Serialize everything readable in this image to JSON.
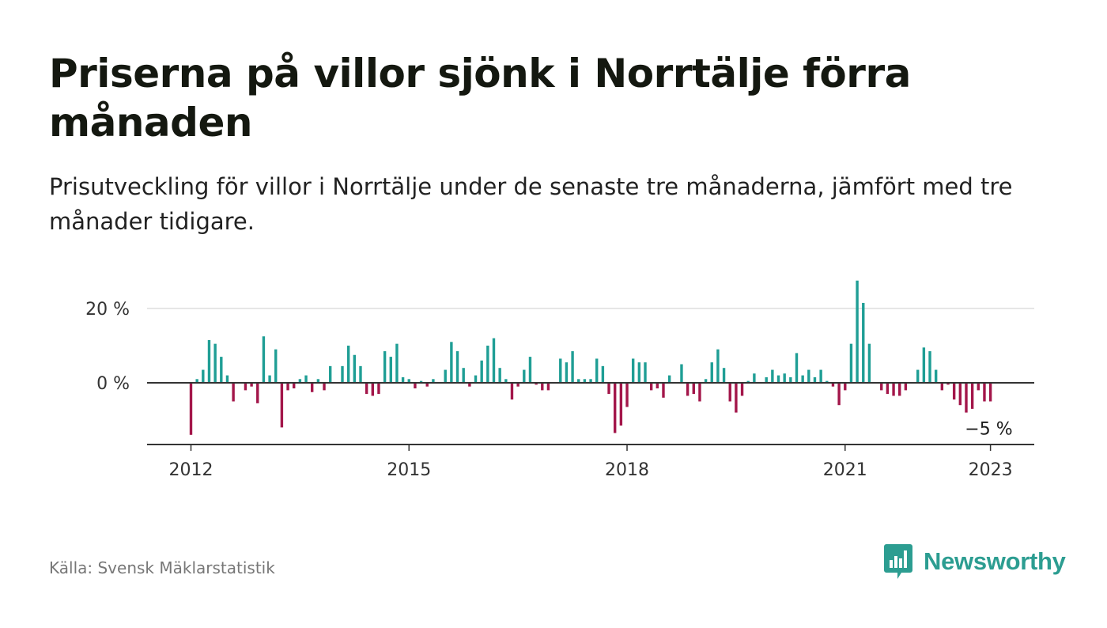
{
  "header": {
    "title": "Priserna på villor sjönk i Norrtälje förra månaden",
    "subtitle": "Prisutveckling för villor i Norrtälje under de senaste tre månaderna, jämfört med tre månader tidigare."
  },
  "footer": {
    "source": "Källa: Svensk Mäklarstatistik",
    "brand": "Newsworthy",
    "brand_icon": "bar-chart-speech-bubble-icon"
  },
  "colors": {
    "positive": "#1f9e95",
    "negative": "#a3164a",
    "gridline": "#dddddd",
    "axis": "#333333",
    "brand": "#2c9d91"
  },
  "chart_data": {
    "type": "bar",
    "ylabel": "",
    "xlabel": "",
    "ylim": [
      -17,
      28
    ],
    "yticks": [
      {
        "value": 0,
        "label": "0 %"
      },
      {
        "value": 20,
        "label": "20 %"
      }
    ],
    "xticks": [
      {
        "value": "2012-01",
        "label": "2012"
      },
      {
        "value": "2015-01",
        "label": "2015"
      },
      {
        "value": "2018-01",
        "label": "2018"
      },
      {
        "value": "2021-01",
        "label": "2021"
      },
      {
        "value": "2023-01",
        "label": "2023"
      }
    ],
    "grid": true,
    "annotation": {
      "x": "2023-01",
      "label": "−5 %"
    },
    "series": [
      {
        "x": [
          "2012-01",
          "2012-02",
          "2012-03",
          "2012-04",
          "2012-05",
          "2012-06",
          "2012-07",
          "2012-08",
          "2012-09",
          "2012-10",
          "2012-11",
          "2012-12",
          "2013-01",
          "2013-02",
          "2013-03",
          "2013-04",
          "2013-05",
          "2013-06",
          "2013-07",
          "2013-08",
          "2013-09",
          "2013-10",
          "2013-11",
          "2013-12",
          "2014-01",
          "2014-02",
          "2014-03",
          "2014-04",
          "2014-05",
          "2014-06",
          "2014-07",
          "2014-08",
          "2014-09",
          "2014-10",
          "2014-11",
          "2014-12",
          "2015-01",
          "2015-02",
          "2015-03",
          "2015-04",
          "2015-05",
          "2015-06",
          "2015-07",
          "2015-08",
          "2015-09",
          "2015-10",
          "2015-11",
          "2015-12",
          "2016-01",
          "2016-02",
          "2016-03",
          "2016-04",
          "2016-05",
          "2016-06",
          "2016-07",
          "2016-08",
          "2016-09",
          "2016-10",
          "2016-11",
          "2016-12",
          "2017-01",
          "2017-02",
          "2017-03",
          "2017-04",
          "2017-05",
          "2017-06",
          "2017-07",
          "2017-08",
          "2017-09",
          "2017-10",
          "2017-11",
          "2017-12",
          "2018-01",
          "2018-02",
          "2018-03",
          "2018-04",
          "2018-05",
          "2018-06",
          "2018-07",
          "2018-08",
          "2018-09",
          "2018-10",
          "2018-11",
          "2018-12",
          "2019-01",
          "2019-02",
          "2019-03",
          "2019-04",
          "2019-05",
          "2019-06",
          "2019-07",
          "2019-08",
          "2019-09",
          "2019-10",
          "2019-11",
          "2019-12",
          "2020-01",
          "2020-02",
          "2020-03",
          "2020-04",
          "2020-05",
          "2020-06",
          "2020-07",
          "2020-08",
          "2020-09",
          "2020-10",
          "2020-11",
          "2020-12",
          "2021-01",
          "2021-02",
          "2021-03",
          "2021-04",
          "2021-05",
          "2021-06",
          "2021-07",
          "2021-08",
          "2021-09",
          "2021-10",
          "2021-11",
          "2021-12",
          "2022-01",
          "2022-02",
          "2022-03",
          "2022-04",
          "2022-05",
          "2022-06",
          "2022-07",
          "2022-08",
          "2022-09",
          "2022-10",
          "2022-11",
          "2022-12",
          "2023-01"
        ],
        "values": [
          -14,
          1,
          3.5,
          11.5,
          10.5,
          7,
          2,
          -5,
          0,
          -2,
          -1,
          -5.5,
          12.5,
          2,
          9,
          -12,
          -2,
          -1.5,
          1,
          2,
          -2.5,
          1,
          -2,
          4.5,
          0,
          4.5,
          10,
          7.5,
          4.5,
          -3,
          -3.5,
          -3,
          8.5,
          7,
          10.5,
          1.5,
          1,
          -1.5,
          0.5,
          -1,
          1,
          0,
          3.5,
          11,
          8.5,
          4,
          -1,
          2,
          6,
          10,
          12,
          4,
          1,
          -4.5,
          -1,
          3.5,
          7,
          -0.5,
          -2,
          -2,
          0,
          6.5,
          5.5,
          8.5,
          1,
          1,
          1,
          6.5,
          4.5,
          -3,
          -13.5,
          -11.5,
          -6.5,
          6.5,
          5.5,
          5.5,
          -2,
          -1.5,
          -4,
          2,
          0,
          5,
          -3.5,
          -3,
          -5,
          1,
          5.5,
          9,
          4,
          -5,
          -8,
          -3.5,
          0.5,
          2.5,
          0,
          1.5,
          3.5,
          2,
          2.5,
          1.5,
          8,
          2,
          3.5,
          1.5,
          3.5,
          0.5,
          -1,
          -6,
          -2,
          10.5,
          27.5,
          21.5,
          10.5,
          0,
          -2,
          -3,
          -3.5,
          -3.5,
          -2,
          0,
          3.5,
          9.5,
          8.5,
          3.5,
          -2,
          -0.5,
          -4.5,
          -6,
          -8,
          -7,
          -2,
          -5,
          -5
        ]
      }
    ]
  }
}
